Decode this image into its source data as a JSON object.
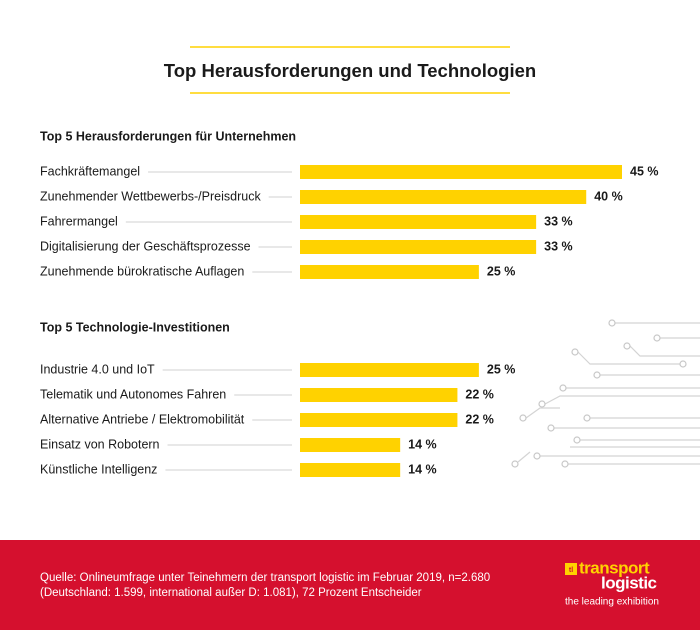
{
  "title": "Top Herausforderungen und Technologien",
  "chart_data": [
    {
      "type": "bar",
      "title": "Top 5 Herausforderungen für Unternehmen",
      "color": "#ffd200",
      "categories": [
        "Fachkräftemangel",
        "Zunehmender Wettbewerbs-/Preisdruck",
        "Fahrermangel",
        "Digitalisierung der Geschäftsprozesse",
        "Zunehmende bürokratische Auflagen"
      ],
      "values": [
        45,
        40,
        33,
        33,
        25
      ],
      "value_labels": [
        "45 %",
        "40 %",
        "33 %",
        "33 %",
        "25 %"
      ]
    },
    {
      "type": "bar",
      "title": "Top 5 Technologie-Investitionen",
      "color": "#ffd200",
      "categories": [
        "Industrie 4.0 und IoT",
        "Telematik und Autonomes Fahren",
        "Alternative Antriebe / Elektromobilität",
        "Einsatz von Robotern",
        "Künstliche Intelligenz"
      ],
      "values": [
        25,
        22,
        22,
        14,
        14
      ],
      "value_labels": [
        "25 %",
        "22 %",
        "22 %",
        "14 %",
        "14 %"
      ]
    }
  ],
  "footer": {
    "source_lines": [
      "Quelle: Onlineumfrage unter Teinehmern der transport logistic im Februar 2019, n=2.680",
      "(Deutschland: 1.599, international außer D: 1.081), 72 Prozent Entscheider"
    ],
    "logo": {
      "icon": "tl",
      "word1": "transport",
      "word2": "logistic",
      "tagline": "the leading exhibition"
    }
  }
}
